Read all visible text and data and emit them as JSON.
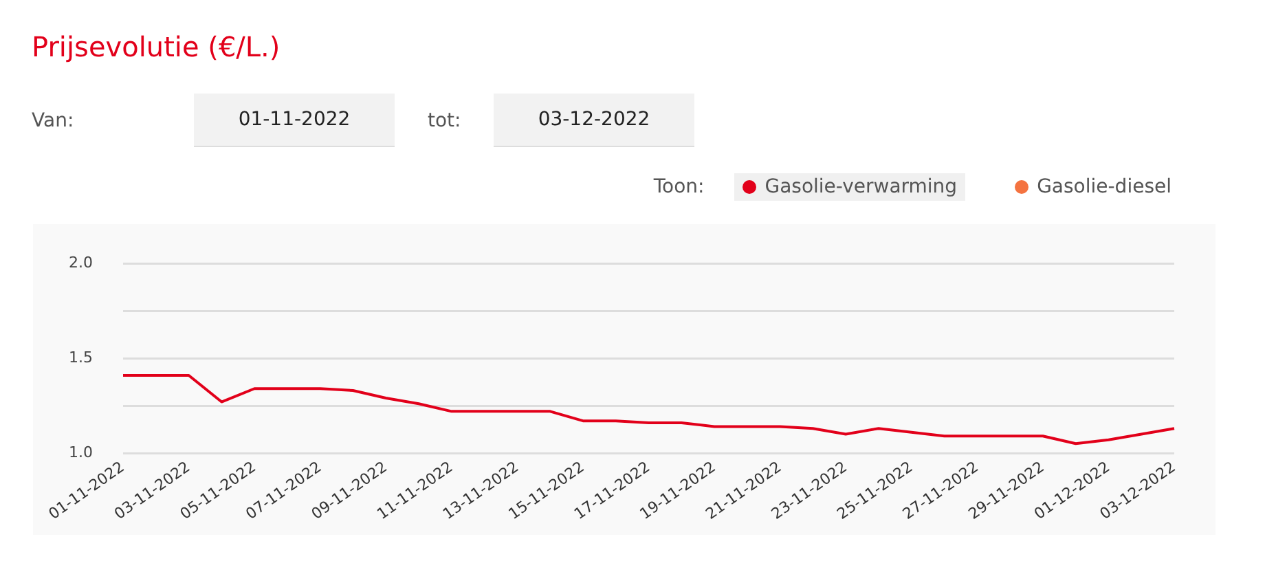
{
  "chart_data": {
    "type": "line",
    "title": "Prijsevolutie (€/L.)",
    "annotations": [
      "Van:",
      "01-11-2022",
      "tot:",
      "03-12-2022"
    ],
    "legend_title": "Toon:",
    "categories": [
      "01-11-2022",
      null,
      "03-11-2022",
      null,
      "05-11-2022",
      null,
      "07-11-2022",
      null,
      "09-11-2022",
      null,
      "11-11-2022",
      null,
      "13-11-2022",
      null,
      "15-11-2022",
      null,
      "17-11-2022",
      null,
      "19-11-2022",
      null,
      "21-11-2022",
      null,
      "23-11-2022",
      null,
      "25-11-2022",
      null,
      "27-11-2022",
      null,
      "29-11-2022",
      null,
      "01-12-2022",
      null,
      "03-12-2022"
    ],
    "series": [
      {
        "name": "Gasolie-verwarming",
        "color": "#e2001a",
        "values": [
          1.41,
          1.41,
          1.41,
          1.27,
          1.34,
          1.34,
          1.34,
          1.33,
          1.29,
          1.26,
          1.22,
          1.22,
          1.22,
          1.22,
          1.17,
          1.17,
          1.16,
          1.16,
          1.14,
          1.14,
          1.14,
          1.13,
          1.1,
          1.13,
          1.11,
          1.09,
          1.09,
          1.09,
          1.09,
          1.05,
          1.07,
          1.1,
          1.13
        ]
      },
      {
        "name": "Gasolie-diesel",
        "color": "#f47340",
        "values": [
          null,
          null,
          null,
          null,
          null,
          null,
          null,
          null,
          null,
          null,
          null,
          null,
          null,
          null,
          null,
          null,
          null,
          null,
          null,
          null,
          null,
          null,
          null,
          null,
          null,
          null,
          null,
          null,
          null,
          null,
          null,
          null,
          null
        ]
      }
    ],
    "ylim": [
      1.0,
      2.0
    ],
    "yticks": [
      {
        "value": 1,
        "label": "1.0"
      },
      {
        "value": 1.25,
        "label": null
      },
      {
        "value": 1.5,
        "label": "1.5"
      },
      {
        "value": 1.75,
        "label": null
      },
      {
        "value": 2,
        "label": "2.0"
      }
    ],
    "grid": "y",
    "legend": "top right",
    "marker": "none",
    "line_style": "solid"
  }
}
